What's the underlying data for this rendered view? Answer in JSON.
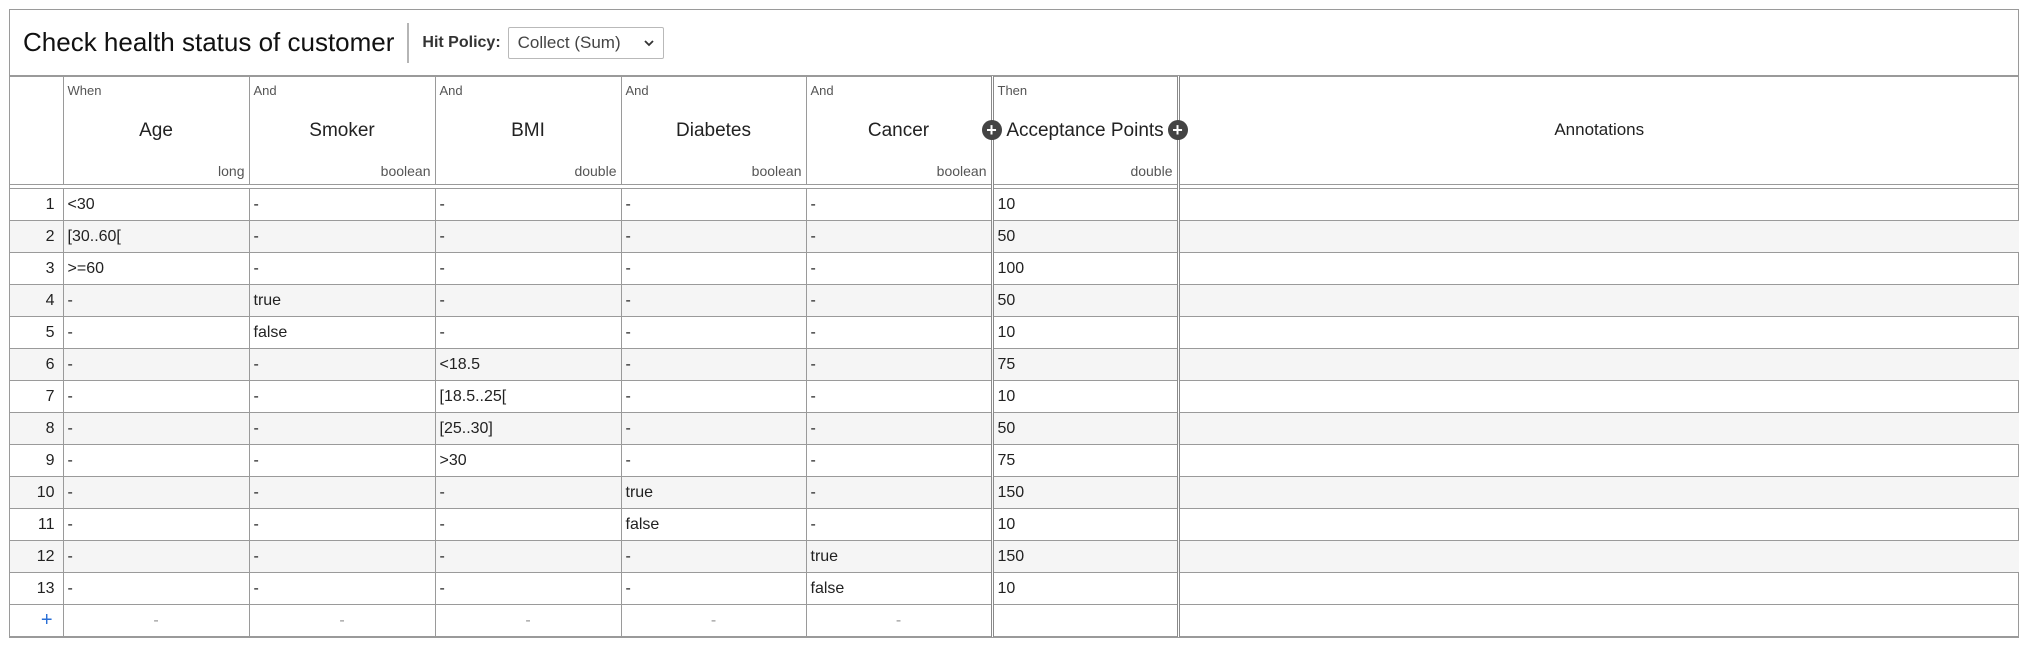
{
  "header": {
    "title": "Check health status of customer",
    "hit_policy_label": "Hit Policy:",
    "hit_policy_value": "Collect (Sum)"
  },
  "columns": {
    "inputs": [
      {
        "clause": "When",
        "label": "Age",
        "type": "long"
      },
      {
        "clause": "And",
        "label": "Smoker",
        "type": "boolean"
      },
      {
        "clause": "And",
        "label": "BMI",
        "type": "double"
      },
      {
        "clause": "And",
        "label": "Diabetes",
        "type": "boolean"
      },
      {
        "clause": "And",
        "label": "Cancer",
        "type": "boolean"
      }
    ],
    "output": {
      "clause": "Then",
      "label": "Acceptance Points",
      "type": "double"
    },
    "annotations": "Annotations"
  },
  "rows": [
    {
      "n": "1",
      "age": "<30",
      "smoker": "-",
      "bmi": "-",
      "diabetes": "-",
      "cancer": "-",
      "points": "10",
      "ann": ""
    },
    {
      "n": "2",
      "age": "[30..60[",
      "smoker": "-",
      "bmi": "-",
      "diabetes": "-",
      "cancer": "-",
      "points": "50",
      "ann": ""
    },
    {
      "n": "3",
      "age": ">=60",
      "smoker": "-",
      "bmi": "-",
      "diabetes": "-",
      "cancer": "-",
      "points": "100",
      "ann": ""
    },
    {
      "n": "4",
      "age": "-",
      "smoker": "true",
      "bmi": "-",
      "diabetes": "-",
      "cancer": "-",
      "points": "50",
      "ann": ""
    },
    {
      "n": "5",
      "age": "-",
      "smoker": "false",
      "bmi": "-",
      "diabetes": "-",
      "cancer": "-",
      "points": "10",
      "ann": ""
    },
    {
      "n": "6",
      "age": "-",
      "smoker": "-",
      "bmi": "<18.5",
      "diabetes": "-",
      "cancer": "-",
      "points": "75",
      "ann": ""
    },
    {
      "n": "7",
      "age": "-",
      "smoker": "-",
      "bmi": "[18.5..25[",
      "diabetes": "-",
      "cancer": "-",
      "points": "10",
      "ann": ""
    },
    {
      "n": "8",
      "age": "-",
      "smoker": "-",
      "bmi": "[25..30]",
      "diabetes": "-",
      "cancer": "-",
      "points": "50",
      "ann": ""
    },
    {
      "n": "9",
      "age": "-",
      "smoker": "-",
      "bmi": ">30",
      "diabetes": "-",
      "cancer": "-",
      "points": "75",
      "ann": ""
    },
    {
      "n": "10",
      "age": "-",
      "smoker": "-",
      "bmi": "-",
      "diabetes": "true",
      "cancer": "-",
      "points": "150",
      "ann": ""
    },
    {
      "n": "11",
      "age": "-",
      "smoker": "-",
      "bmi": "-",
      "diabetes": "false",
      "cancer": "-",
      "points": "10",
      "ann": ""
    },
    {
      "n": "12",
      "age": "-",
      "smoker": "-",
      "bmi": "-",
      "diabetes": "-",
      "cancer": "true",
      "points": "150",
      "ann": ""
    },
    {
      "n": "13",
      "age": "-",
      "smoker": "-",
      "bmi": "-",
      "diabetes": "-",
      "cancer": "false",
      "points": "10",
      "ann": ""
    }
  ],
  "add_row": {
    "plus": "+",
    "placeholder": "-"
  }
}
